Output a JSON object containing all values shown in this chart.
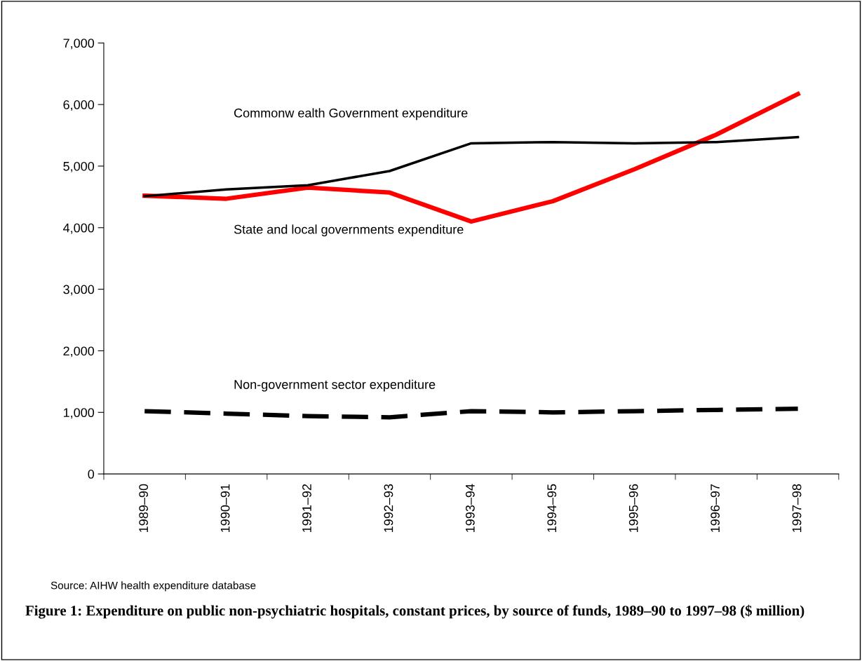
{
  "chart_data": {
    "type": "line",
    "title": "Figure 1: Expenditure on public non-psychiatric hospitals, constant prices, by source of funds, 1989–90 to 1997–98 ($ million)",
    "categories": [
      "1989–90",
      "1990–91",
      "1991–92",
      "1992–93",
      "1993–94",
      "1994–95",
      "1995–96",
      "1996–97",
      "1997–98"
    ],
    "series": [
      {
        "name": "Commonw ealth Government expenditure",
        "color": "#000000",
        "line_style": "solid",
        "values": [
          4510,
          4620,
          4690,
          4920,
          5370,
          5390,
          5370,
          5390,
          5470
        ]
      },
      {
        "name": "State and local governments expenditure",
        "color": "#ff0000",
        "line_style": "solid",
        "values": [
          4520,
          4470,
          4650,
          4570,
          4100,
          4430,
          4950,
          5510,
          6170
        ]
      },
      {
        "name": "Non-government sector expenditure",
        "color": "#000000",
        "line_style": "dashed",
        "values": [
          1020,
          980,
          940,
          920,
          1020,
          1000,
          1020,
          1040,
          1060
        ]
      }
    ],
    "ylim": [
      0,
      7000
    ],
    "yticks": [
      {
        "value": 0,
        "label": "0"
      },
      {
        "value": 1000,
        "label": "1,000"
      },
      {
        "value": 2000,
        "label": "2,000"
      },
      {
        "value": 3000,
        "label": "3,000"
      },
      {
        "value": 4000,
        "label": "4,000"
      },
      {
        "value": 5000,
        "label": "5,000"
      },
      {
        "value": 6000,
        "label": "6,000"
      },
      {
        "value": 7000,
        "label": "7,000"
      }
    ],
    "grid": false,
    "legend": false,
    "marker": "none",
    "annotations": [
      "Source: AIHW health expenditure database"
    ]
  }
}
